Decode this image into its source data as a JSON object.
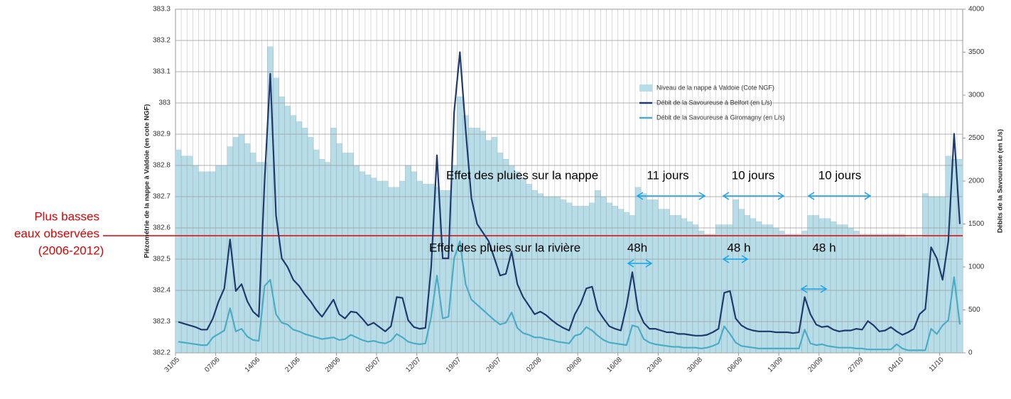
{
  "chart_data": {
    "type": "bar",
    "categories": [
      "31/05",
      null,
      null,
      null,
      null,
      null,
      null,
      "07/06",
      null,
      null,
      null,
      null,
      null,
      null,
      "14/06",
      null,
      null,
      null,
      null,
      null,
      null,
      "21/06",
      null,
      null,
      null,
      null,
      null,
      null,
      "28/06",
      null,
      null,
      null,
      null,
      null,
      null,
      "05/07",
      null,
      null,
      null,
      null,
      null,
      null,
      "12/07",
      null,
      null,
      null,
      null,
      null,
      null,
      "19/07",
      null,
      null,
      null,
      null,
      null,
      null,
      "26/07",
      null,
      null,
      null,
      null,
      null,
      null,
      "02/08",
      null,
      null,
      null,
      null,
      null,
      null,
      "09/08",
      null,
      null,
      null,
      null,
      null,
      null,
      "16/08",
      null,
      null,
      null,
      null,
      null,
      null,
      "23/08",
      null,
      null,
      null,
      null,
      null,
      null,
      "30/08",
      null,
      null,
      null,
      null,
      null,
      null,
      "06/09",
      null,
      null,
      null,
      null,
      null,
      null,
      "13/09",
      null,
      null,
      null,
      null,
      null,
      null,
      "20/09",
      null,
      null,
      null,
      null,
      null,
      null,
      "27/09",
      null,
      null,
      null,
      null,
      null,
      null,
      "04/10",
      null,
      null,
      null,
      null,
      null,
      null,
      "11/10",
      null,
      null,
      null
    ],
    "series": [
      {
        "name": "Niveau de la nappe à Valdoie (Cote NGF)",
        "type": "bar",
        "axis": "y",
        "color": "#b7dde8",
        "values": [
          382.85,
          382.83,
          382.83,
          382.8,
          382.78,
          382.78,
          382.78,
          382.8,
          382.8,
          382.86,
          382.89,
          382.9,
          382.87,
          382.84,
          382.81,
          382.81,
          383.18,
          383.08,
          383.02,
          382.99,
          382.96,
          382.94,
          382.92,
          382.89,
          382.85,
          382.82,
          382.81,
          382.92,
          382.87,
          382.84,
          382.84,
          382.8,
          382.78,
          382.77,
          382.76,
          382.75,
          382.75,
          382.73,
          382.73,
          382.75,
          382.8,
          382.78,
          382.75,
          382.74,
          382.74,
          382.73,
          382.72,
          382.72,
          382.8,
          383.02,
          382.96,
          382.92,
          382.92,
          382.91,
          382.88,
          382.89,
          382.84,
          382.82,
          382.8,
          382.78,
          382.76,
          382.74,
          382.72,
          382.71,
          382.7,
          382.7,
          382.7,
          382.69,
          382.68,
          382.67,
          382.67,
          382.67,
          382.68,
          382.72,
          382.7,
          382.68,
          382.67,
          382.66,
          382.65,
          382.64,
          382.73,
          382.71,
          382.69,
          382.69,
          382.66,
          382.66,
          382.64,
          382.64,
          382.63,
          382.62,
          382.61,
          382.59,
          382.58,
          382.58,
          382.61,
          382.61,
          382.61,
          382.69,
          382.66,
          382.64,
          382.63,
          382.62,
          382.61,
          382.61,
          382.6,
          382.59,
          382.58,
          382.58,
          382.58,
          382.59,
          382.64,
          382.64,
          382.63,
          382.63,
          382.62,
          382.61,
          382.61,
          382.6,
          382.59,
          382.58,
          382.58,
          382.58,
          382.58,
          382.58,
          382.58,
          382.58,
          382.58,
          382.57,
          382.57,
          382.57,
          382.71,
          382.7,
          382.7,
          382.7,
          382.83,
          382.82,
          382.82
        ]
      },
      {
        "name": "Débit de la Savoureuse à Belfort (en L/s)",
        "type": "line",
        "axis": "y2",
        "color": "#1f3b6e",
        "values": [
          360,
          340,
          320,
          300,
          270,
          270,
          400,
          600,
          750,
          1320,
          720,
          800,
          600,
          480,
          420,
          2000,
          3250,
          1600,
          1100,
          1000,
          850,
          780,
          680,
          600,
          500,
          420,
          520,
          620,
          450,
          400,
          480,
          470,
          400,
          320,
          350,
          300,
          250,
          310,
          650,
          640,
          380,
          300,
          280,
          290,
          1000,
          2300,
          1100,
          1100,
          2800,
          3500,
          2600,
          1800,
          1500,
          1400,
          1300,
          1100,
          900,
          920,
          1180,
          800,
          650,
          550,
          450,
          480,
          440,
          380,
          330,
          290,
          260,
          450,
          570,
          750,
          770,
          500,
          400,
          310,
          280,
          260,
          550,
          940,
          500,
          350,
          280,
          280,
          260,
          240,
          240,
          220,
          220,
          210,
          200,
          200,
          210,
          240,
          280,
          700,
          720,
          400,
          320,
          280,
          260,
          250,
          250,
          250,
          240,
          240,
          240,
          230,
          240,
          650,
          450,
          330,
          300,
          310,
          270,
          250,
          260,
          260,
          280,
          270,
          370,
          320,
          250,
          260,
          300,
          250,
          210,
          240,
          280,
          450,
          510,
          1230,
          1100,
          850,
          1300,
          2550,
          1500
        ]
      },
      {
        "name": "Débit de la Savoureuse à Giromagny (en L/s)",
        "type": "line",
        "axis": "y2",
        "color": "#4bacc6",
        "values": [
          130,
          120,
          110,
          100,
          90,
          90,
          180,
          220,
          260,
          520,
          250,
          280,
          190,
          150,
          140,
          780,
          850,
          450,
          350,
          330,
          270,
          250,
          220,
          200,
          180,
          160,
          170,
          180,
          150,
          160,
          210,
          180,
          150,
          130,
          140,
          120,
          110,
          140,
          220,
          180,
          130,
          110,
          100,
          110,
          420,
          900,
          400,
          420,
          1100,
          1300,
          800,
          620,
          560,
          500,
          440,
          380,
          330,
          350,
          470,
          290,
          230,
          210,
          180,
          180,
          160,
          150,
          130,
          120,
          110,
          200,
          220,
          300,
          260,
          200,
          150,
          120,
          110,
          100,
          90,
          320,
          300,
          160,
          120,
          100,
          90,
          80,
          70,
          70,
          60,
          60,
          60,
          50,
          60,
          80,
          110,
          310,
          220,
          120,
          80,
          70,
          60,
          50,
          50,
          50,
          50,
          50,
          50,
          50,
          50,
          270,
          110,
          90,
          100,
          80,
          70,
          60,
          60,
          60,
          50,
          50,
          40,
          40,
          40,
          40,
          40,
          100,
          50,
          30,
          30,
          30,
          30,
          280,
          220,
          320,
          380,
          880,
          330
        ]
      }
    ],
    "ylabel": "Piézométrie de la nappe à Valdoie (en cote NGF)",
    "y2label": "Débits de la Savoureuse (en L/s)",
    "ylim": [
      382.2,
      383.3
    ],
    "yticks": [
      382.2,
      382.3,
      382.4,
      382.5,
      382.6,
      382.7,
      382.8,
      382.9,
      383,
      383.1,
      383.2,
      383.3
    ],
    "y2lim": [
      0,
      4000
    ],
    "y2ticks": [
      0,
      500,
      1000,
      1500,
      2000,
      2500,
      3000,
      3500,
      4000
    ],
    "grid": true,
    "legend": "upper right",
    "reference_line": {
      "value": 382.575,
      "color": "#e00000",
      "label": [
        "Plus basses",
        "eaux observées",
        "(2006-2012)"
      ]
    },
    "annotations": [
      "Effet des pluies sur la nappe",
      "11 jours",
      "10 jours",
      "10 jours",
      "Effet des pluies sur la rivière",
      "48h",
      "48 h",
      "48 h"
    ]
  }
}
